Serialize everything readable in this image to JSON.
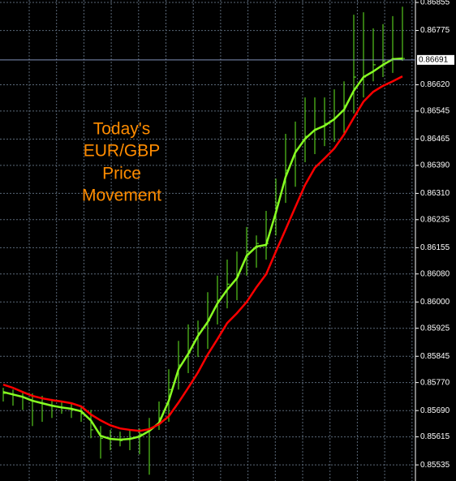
{
  "chart_data": {
    "type": "ohlc",
    "annotation": [
      "Today's",
      "EUR/GBP",
      "Price",
      "Movement"
    ],
    "ylim": [
      0.85489,
      0.86862
    ],
    "yticks": [
      0.86855,
      0.86775,
      {
        "value": 0.8662,
        "label": "0.86620"
      },
      0.86545,
      0.86465,
      {
        "value": 0.8639,
        "label": "0.86390"
      },
      {
        "value": 0.8631,
        "label": "0.86310"
      },
      0.86235,
      0.86155,
      {
        "value": 0.8608,
        "label": "0.86080"
      },
      {
        "value": 0.86,
        "label": "0.86000"
      },
      0.85925,
      0.85845,
      {
        "value": 0.8577,
        "label": "0.85770"
      },
      {
        "value": 0.8569,
        "label": "0.85690"
      },
      0.85615,
      0.85535
    ],
    "grid": true,
    "current_price": 0.86691,
    "price_line_color": "#8090b8",
    "bar_color": "#66ee22",
    "high": [
      0.85755,
      0.8575,
      0.85746,
      0.85739,
      0.85732,
      0.85723,
      0.85718,
      0.85711,
      0.85704,
      0.85692,
      0.85646,
      0.85635,
      0.8563,
      0.85635,
      0.85639,
      0.85669,
      0.85716,
      0.85808,
      0.85889,
      0.85936,
      0.85947,
      0.86028,
      0.86075,
      0.86121,
      0.86144,
      0.86214,
      0.8619,
      0.8626,
      0.86352,
      0.8648,
      0.86515,
      0.86584,
      0.86584,
      0.86584,
      0.86607,
      0.8663,
      0.8682,
      0.86827,
      0.86781,
      0.86793,
      0.86816,
      0.86843
    ],
    "low": [
      0.85716,
      0.85704,
      0.85692,
      0.85646,
      0.85658,
      0.85669,
      0.85681,
      0.85669,
      0.85658,
      0.85611,
      0.85553,
      0.85577,
      0.85588,
      0.85577,
      0.85565,
      0.85507,
      0.85635,
      0.85658,
      0.8575,
      0.85797,
      0.85843,
      0.85866,
      0.85936,
      0.85982,
      0.86005,
      0.86075,
      0.86098,
      0.86121,
      0.8619,
      0.86283,
      0.86329,
      0.86399,
      0.86422,
      0.86445,
      0.86457,
      0.8648,
      0.86538,
      0.86584,
      0.8663,
      0.86642,
      0.86654,
      0.86688
    ],
    "close": [
      0.85739,
      0.85734,
      0.85727,
      0.85716,
      0.85709,
      0.85704,
      0.85699,
      0.85692,
      0.85681,
      0.85635,
      0.85611,
      0.85609,
      0.85604,
      0.85611,
      0.85623,
      0.85639,
      0.85669,
      0.8575,
      0.8582,
      0.85855,
      0.85912,
      0.85947,
      0.86005,
      0.86051,
      0.86075,
      0.86144,
      0.86167,
      0.86167,
      0.86283,
      0.86376,
      0.86434,
      0.86473,
      0.86491,
      0.8651,
      0.86526,
      0.86561,
      0.86642,
      0.86642,
      0.86677,
      0.86688,
      0.86695,
      0.86695
    ],
    "series": [
      {
        "color": "#88ff22",
        "values": [
          0.85743,
          0.85736,
          0.85729,
          0.85718,
          0.85711,
          0.85704,
          0.85699,
          0.85695,
          0.85688,
          0.85662,
          0.85618,
          0.85609,
          0.85607,
          0.85609,
          0.85616,
          0.85632,
          0.85655,
          0.85718,
          0.85808,
          0.85852,
          0.85903,
          0.85943,
          0.85996,
          0.86035,
          0.86068,
          0.86132,
          0.86158,
          0.86163,
          0.86255,
          0.86357,
          0.86427,
          0.86466,
          0.86491,
          0.86503,
          0.86522,
          0.86549,
          0.86603,
          0.86642,
          0.86658,
          0.86677,
          0.86693,
          0.86695
        ]
      },
      {
        "color": "#ff0000",
        "values": [
          0.85764,
          0.85755,
          0.85743,
          0.85732,
          0.85725,
          0.8572,
          0.85716,
          0.85711,
          0.85702,
          0.85679,
          0.85662,
          0.85648,
          0.85639,
          0.85635,
          0.85632,
          0.85637,
          0.85651,
          0.85674,
          0.85713,
          0.85755,
          0.85799,
          0.8585,
          0.85894,
          0.8594,
          0.85968,
          0.86,
          0.86042,
          0.86079,
          0.86144,
          0.86207,
          0.86271,
          0.86334,
          0.86383,
          0.8641,
          0.86438,
          0.86478,
          0.86526,
          0.86572,
          0.866,
          0.86617,
          0.8663,
          0.86644
        ]
      }
    ]
  }
}
